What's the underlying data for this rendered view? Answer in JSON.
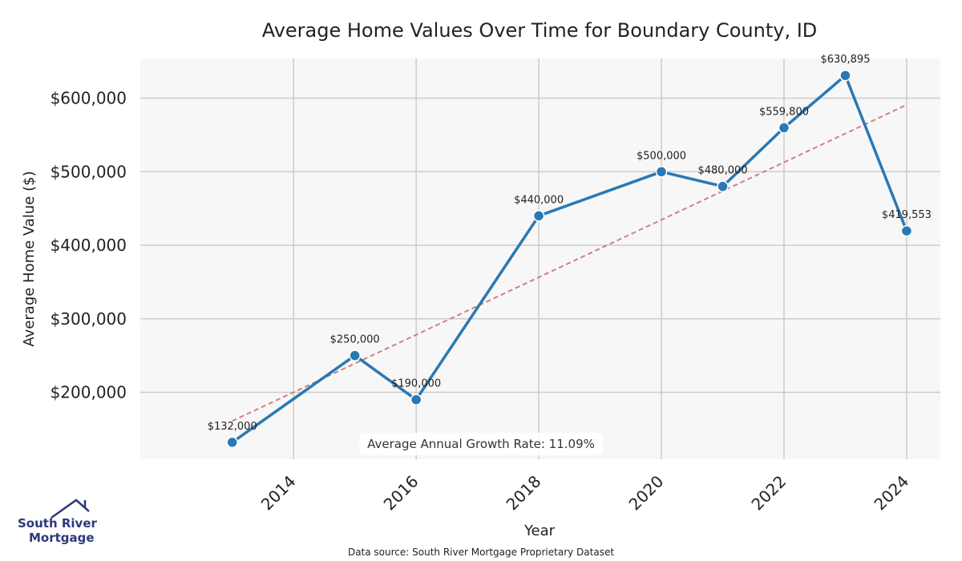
{
  "chart_data": {
    "type": "line",
    "title": "Average Home Values Over Time for Boundary County, ID",
    "xlabel": "Year",
    "ylabel": "Average Home Value ($)",
    "x": [
      2013,
      2015,
      2016,
      2018,
      2020,
      2021,
      2022,
      2023,
      2024
    ],
    "series": [
      {
        "values": [
          132000,
          250000,
          190000,
          440000,
          500000,
          480000,
          559800,
          630895,
          419553
        ],
        "labels": [
          "$132,000",
          "$250,000",
          "$190,000",
          "$440,000",
          "$500,000",
          "$480,000",
          "$559,800",
          "$630,895",
          "$419,553"
        ],
        "color": "#2a78b4"
      }
    ],
    "trendline": {
      "style": "dashed",
      "color": "#d08080",
      "start": [
        2013,
        161000
      ],
      "end": [
        2024,
        591000
      ]
    },
    "xticks": [
      2014,
      2016,
      2018,
      2020,
      2022,
      2024
    ],
    "xtick_labels": [
      "2014",
      "2016",
      "2018",
      "2020",
      "2022",
      "2024"
    ],
    "yticks": [
      200000,
      300000,
      400000,
      500000,
      600000
    ],
    "ytick_labels": [
      "$200,000",
      "$300,000",
      "$400,000",
      "$500,000",
      "$600,000"
    ],
    "xlim": [
      2011.5,
      2024.55
    ],
    "ylim": [
      109000,
      654000
    ],
    "grid": true,
    "background": "#f7f7f7",
    "grid_color": "#cccccc",
    "annotation": "Average Annual Growth Rate: 11.09%"
  },
  "logo": {
    "line1": "South River",
    "line2": "Mortgage",
    "icon": "house-roof-icon",
    "color": "#2b3a7a"
  },
  "source": "Data source: South River Mortgage Proprietary Dataset"
}
